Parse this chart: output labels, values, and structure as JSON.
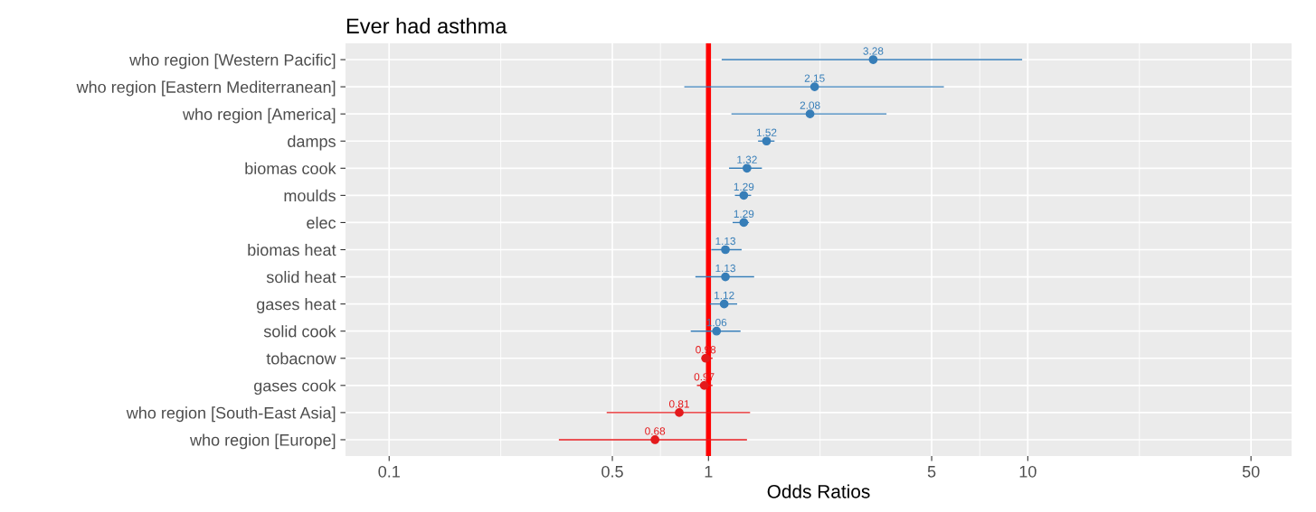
{
  "chart_data": {
    "type": "scatter",
    "orientation": "horizontal",
    "title": "Ever had asthma",
    "xlabel": "Odds Ratios",
    "categories": [
      "who region [Western Pacific]",
      "who region [Eastern Mediterranean]",
      "who region [America]",
      "damps",
      "biomas cook",
      "moulds",
      "elec",
      "biomas heat",
      "solid heat",
      "gases heat",
      "solid cook",
      "tobacnow",
      "gases cook",
      "who region [South-East Asia]",
      "who region [Europe]"
    ],
    "values": [
      3.28,
      2.15,
      2.08,
      1.52,
      1.32,
      1.29,
      1.29,
      1.13,
      1.13,
      1.12,
      1.06,
      0.98,
      0.97,
      0.81,
      0.68
    ],
    "errors": [
      [
        1.1,
        9.6
      ],
      [
        0.84,
        5.46
      ],
      [
        1.18,
        3.61
      ],
      [
        1.43,
        1.61
      ],
      [
        1.16,
        1.47
      ],
      [
        1.21,
        1.36
      ],
      [
        1.19,
        1.34
      ],
      [
        1.02,
        1.27
      ],
      [
        0.91,
        1.39
      ],
      [
        1.01,
        1.23
      ],
      [
        0.88,
        1.26
      ],
      [
        0.95,
        1.03
      ],
      [
        0.92,
        1.03
      ],
      [
        0.48,
        1.35
      ],
      [
        0.34,
        1.32
      ]
    ],
    "colors": [
      "#377eb8",
      "#377eb8",
      "#377eb8",
      "#377eb8",
      "#377eb8",
      "#377eb8",
      "#377eb8",
      "#377eb8",
      "#377eb8",
      "#377eb8",
      "#377eb8",
      "#e41a1c",
      "#e41a1c",
      "#e41a1c",
      "#e41a1c"
    ],
    "data_labels": true,
    "log": "x",
    "xlim": [
      0.073,
      67
    ],
    "xticks": [
      0.1,
      0.5,
      1,
      5,
      10,
      50
    ],
    "grid": true,
    "marker": "circle",
    "ref_lines": [
      {
        "axis": "x",
        "value": 1,
        "color": "#ff0000"
      }
    ]
  }
}
